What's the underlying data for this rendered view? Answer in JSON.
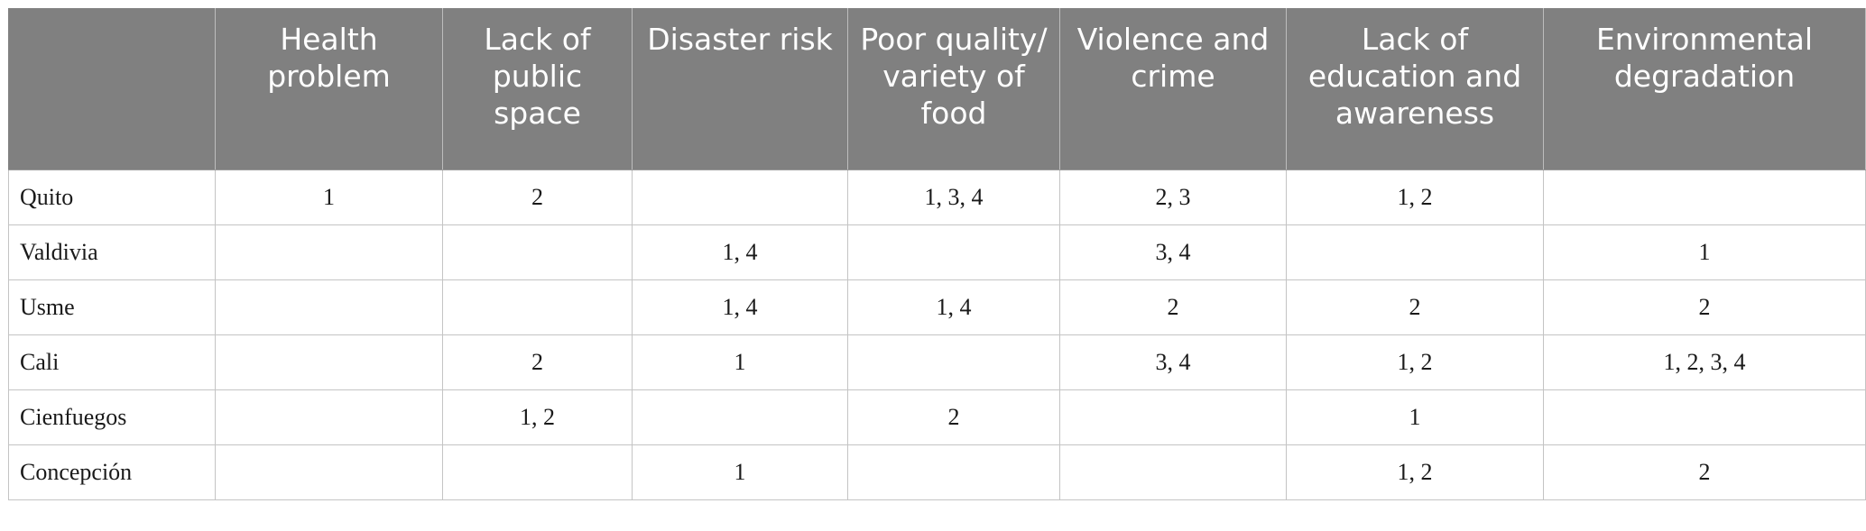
{
  "table": {
    "headers": [
      "",
      "Health problem",
      "Lack of public space",
      "Disaster risk",
      "Poor quality/ variety of food",
      "Violence and crime",
      "Lack of education and awareness",
      "Environmental degradation"
    ],
    "rows": [
      {
        "city": "Quito",
        "cells": [
          "1",
          "2",
          "",
          "1, 3, 4",
          "2, 3",
          "1, 2",
          ""
        ]
      },
      {
        "city": "Valdivia",
        "cells": [
          "",
          "",
          "1, 4",
          "",
          "3, 4",
          "",
          "1"
        ]
      },
      {
        "city": "Usme",
        "cells": [
          "",
          "",
          "1, 4",
          "1, 4",
          "2",
          "2",
          "2"
        ]
      },
      {
        "city": "Cali",
        "cells": [
          "",
          "2",
          "1",
          "",
          "3, 4",
          "1, 2",
          "1, 2, 3, 4"
        ]
      },
      {
        "city": "Cienfuegos",
        "cells": [
          "",
          "1, 2",
          "",
          "2",
          "",
          "1",
          ""
        ]
      },
      {
        "city": "Concepción",
        "cells": [
          "",
          "",
          "1",
          "",
          "",
          "1, 2",
          "2"
        ]
      }
    ]
  }
}
